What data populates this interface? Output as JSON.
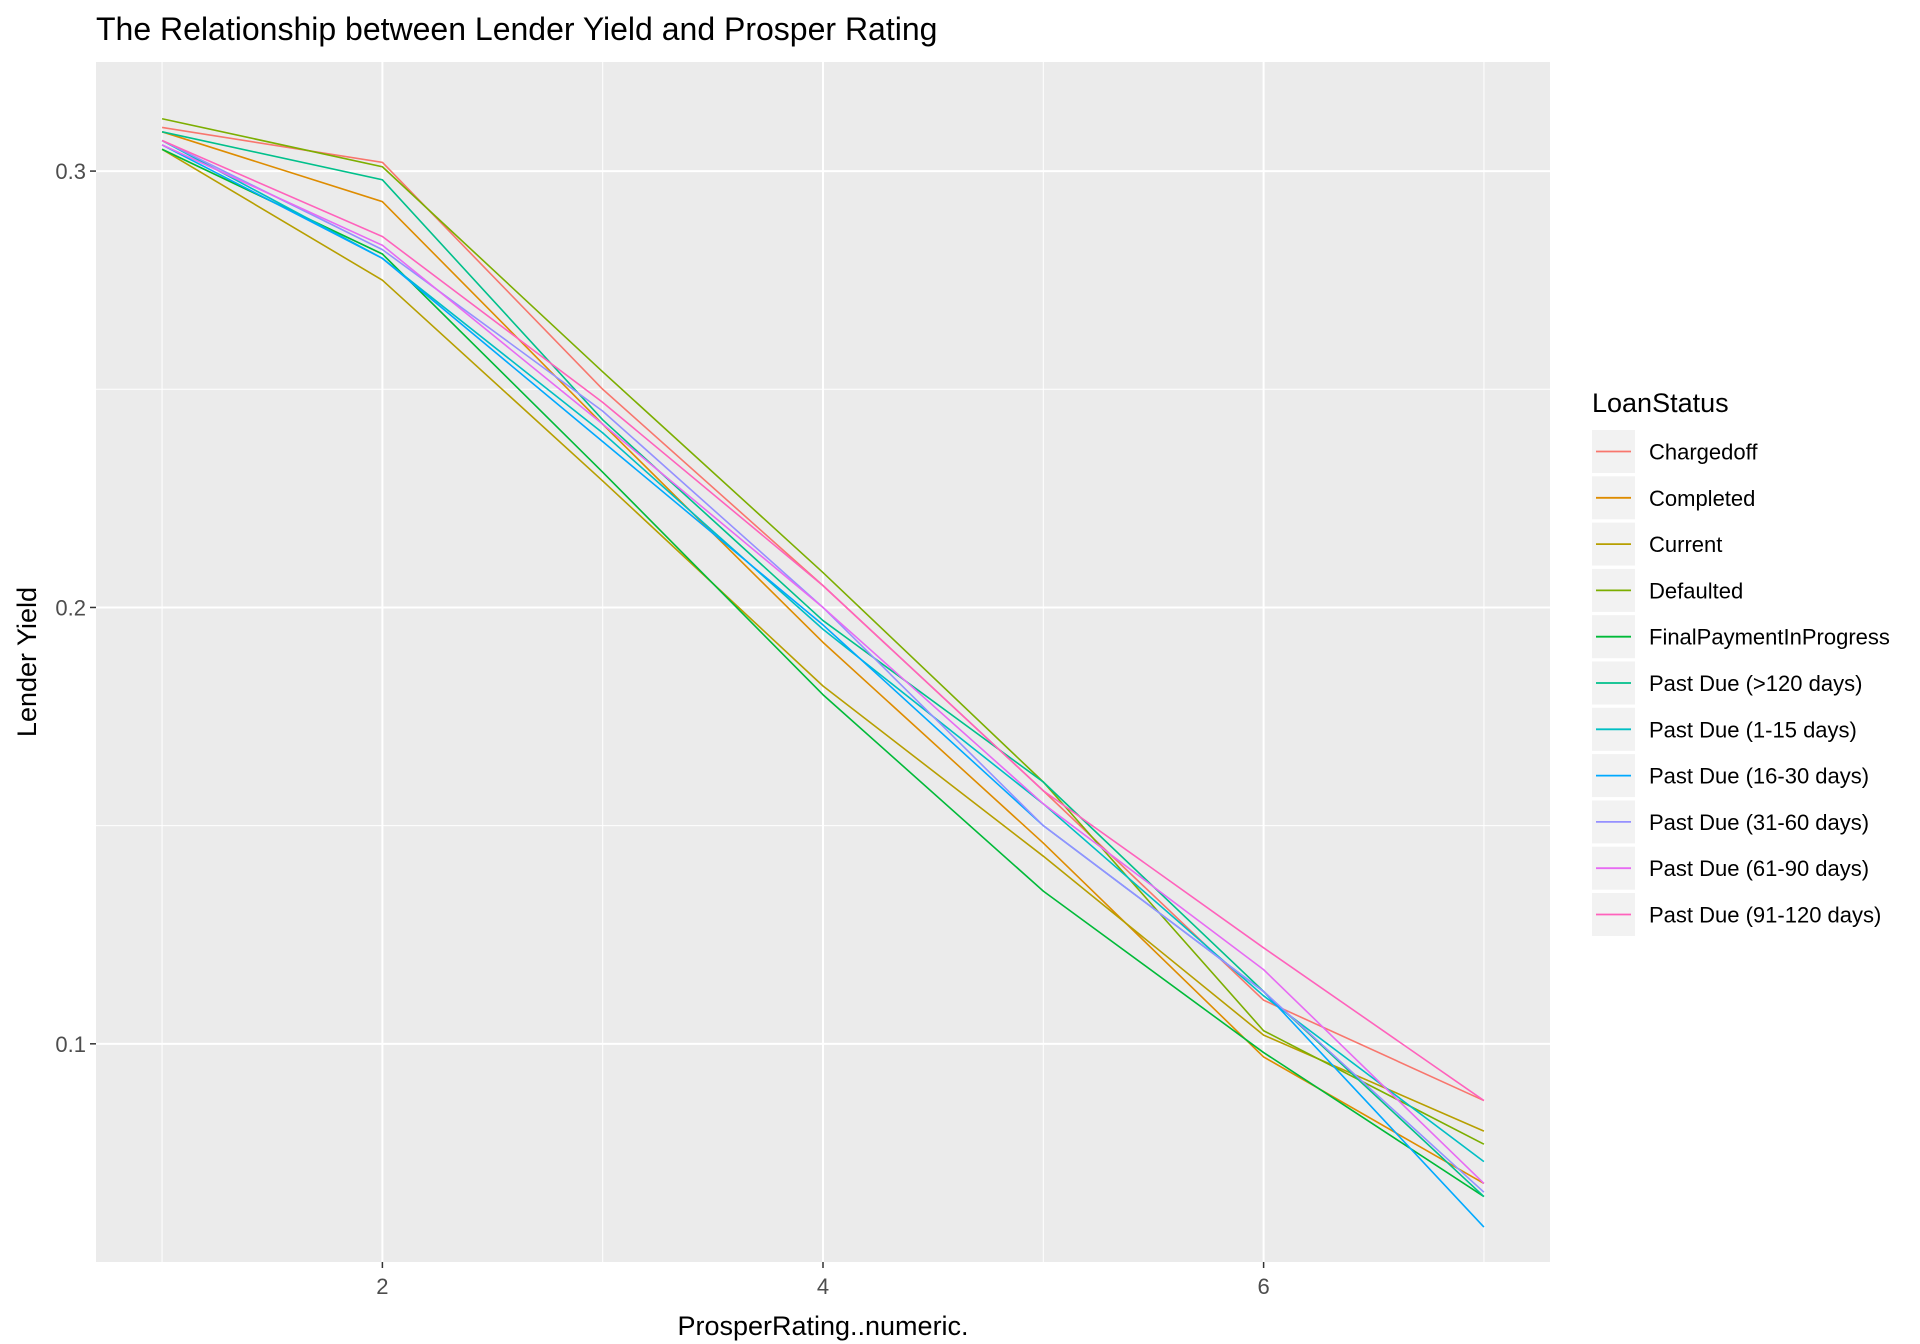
{
  "chart_data": {
    "type": "line",
    "title": "The Relationship between Lender Yield and Prosper Rating",
    "xlabel": "ProsperRating..numeric.",
    "ylabel": "Lender Yield",
    "xlim": [
      0.7,
      7.3
    ],
    "ylim": [
      0.05,
      0.325
    ],
    "x_ticks": [
      2,
      4,
      6
    ],
    "y_ticks": [
      0.1,
      0.2,
      0.3
    ],
    "x_tick_labels": [
      "2",
      "4",
      "6"
    ],
    "y_tick_labels": [
      "0.1",
      "0.2",
      "0.3"
    ],
    "grid": true,
    "legend": {
      "title": "LoanStatus",
      "position": "right"
    },
    "x": [
      1,
      2,
      3,
      4,
      5,
      6,
      7
    ],
    "series": [
      {
        "name": "Chargedoff",
        "color": "#F8766D",
        "values": [
          0.31,
          0.302,
          0.25,
          0.205,
          0.158,
          0.11,
          0.087
        ]
      },
      {
        "name": "Completed",
        "color": "#DE8C00",
        "values": [
          0.309,
          0.293,
          0.242,
          0.192,
          0.146,
          0.097,
          0.068
        ]
      },
      {
        "name": "Current",
        "color": "#B79F00",
        "values": [
          0.305,
          0.275,
          0.229,
          0.182,
          0.143,
          0.102,
          0.08
        ]
      },
      {
        "name": "Defaulted",
        "color": "#7CAE00",
        "values": [
          0.312,
          0.301,
          0.254,
          0.208,
          0.16,
          0.103,
          0.077
        ]
      },
      {
        "name": "FinalPaymentInProgress",
        "color": "#00BA38",
        "values": [
          0.305,
          0.281,
          0.231,
          0.18,
          0.135,
          0.098,
          0.065
        ]
      },
      {
        "name": "Past Due (>120 days)",
        "color": "#00C08B",
        "values": [
          0.309,
          0.298,
          0.243,
          0.197,
          0.16,
          0.112,
          0.065
        ]
      },
      {
        "name": "Past Due (1-15 days)",
        "color": "#00BFC4",
        "values": [
          0.307,
          0.28,
          0.24,
          0.195,
          0.155,
          0.111,
          0.073
        ]
      },
      {
        "name": "Past Due (16-30 days)",
        "color": "#00A9FF",
        "values": [
          0.306,
          0.28,
          0.238,
          0.196,
          0.15,
          0.112,
          0.058
        ]
      },
      {
        "name": "Past Due (31-60 days)",
        "color": "#9590FF",
        "values": [
          0.307,
          0.282,
          0.245,
          0.2,
          0.15,
          0.112,
          0.066
        ]
      },
      {
        "name": "Past Due (61-90 days)",
        "color": "#E76BF3",
        "values": [
          0.306,
          0.283,
          0.242,
          0.2,
          0.155,
          0.117,
          0.068
        ]
      },
      {
        "name": "Past Due (91-120 days)",
        "color": "#FF62BC",
        "values": [
          0.307,
          0.285,
          0.247,
          0.205,
          0.158,
          0.122,
          0.087
        ]
      }
    ]
  }
}
